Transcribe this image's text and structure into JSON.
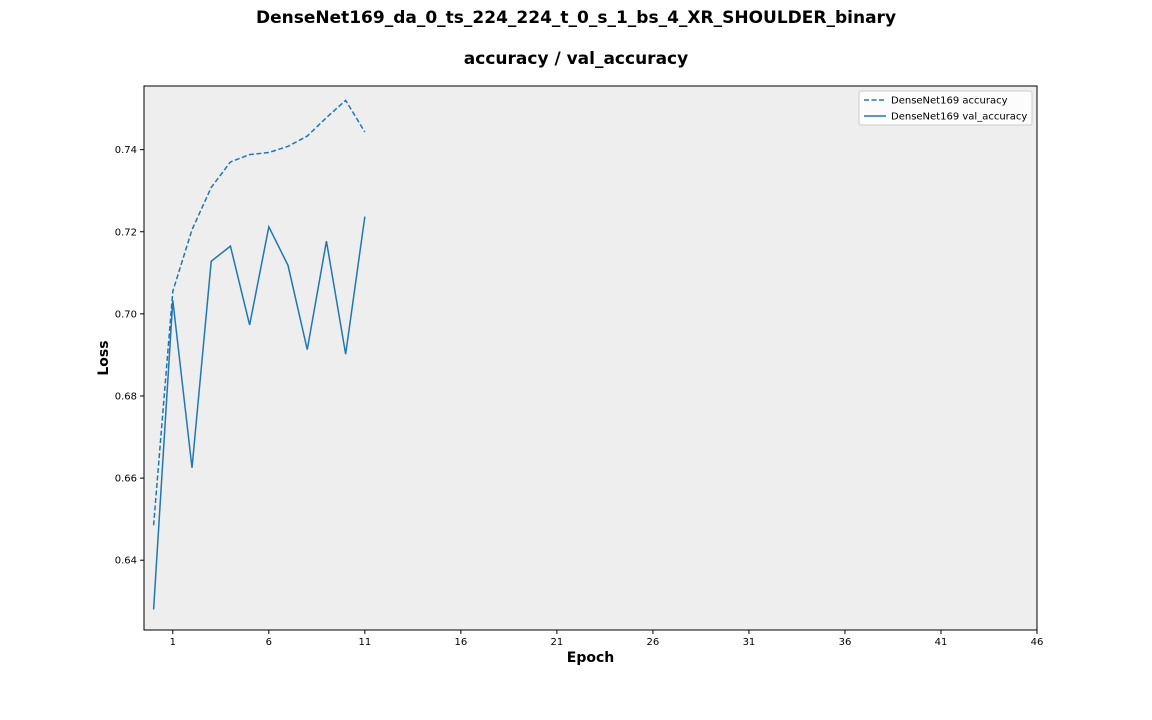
{
  "chart_data": {
    "type": "line",
    "title": "DenseNet169_da_0_ts_224_224_t_0_s_1_bs_4_XR_SHOULDER_binary",
    "subtitle": "accuracy / val_accuracy",
    "xlabel": "Epoch",
    "ylabel": "Loss",
    "xlim": [
      -0.5,
      46
    ],
    "ylim": [
      0.623,
      0.7555
    ],
    "xticks": [
      1,
      6,
      11,
      16,
      21,
      26,
      31,
      36,
      41,
      46
    ],
    "yticks": [
      0.64,
      0.66,
      0.68,
      0.7,
      0.72,
      0.74
    ],
    "ytick_labels": [
      "0.64",
      "0.66",
      "0.68",
      "0.70",
      "0.72",
      "0.74"
    ],
    "grid": false,
    "legend_position": "top-right",
    "background_color": "#eeeeee",
    "x": [
      0,
      1,
      2,
      3,
      4,
      5,
      6,
      7,
      8,
      9,
      10,
      11
    ],
    "series": [
      {
        "name": "DenseNet169 accuracy",
        "line_style": "dashed",
        "color": "#1f77b4",
        "values": [
          0.6485,
          0.7055,
          0.7205,
          0.7308,
          0.737,
          0.7388,
          0.7393,
          0.7408,
          0.7433,
          0.7478,
          0.752,
          0.7443
        ]
      },
      {
        "name": "DenseNet169 val_accuracy",
        "line_style": "solid",
        "color": "#1f77b4",
        "values": [
          0.628,
          0.7033,
          0.6625,
          0.7128,
          0.7165,
          0.6973,
          0.7212,
          0.7118,
          0.6913,
          0.7177,
          0.6902,
          0.7237
        ]
      }
    ]
  }
}
